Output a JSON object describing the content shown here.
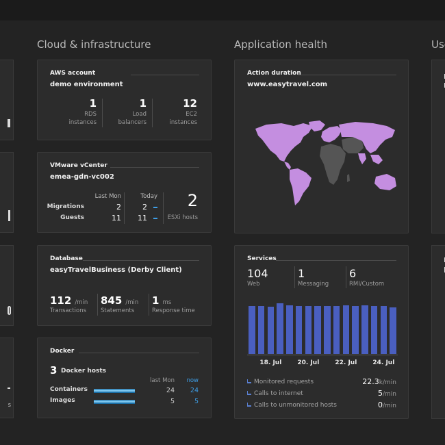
{
  "columns": {
    "cloud": "Cloud & infrastructure",
    "app": "Application health",
    "users_partial": "Use"
  },
  "aws": {
    "head": "AWS account",
    "sub": "demo environment",
    "metrics": [
      {
        "value": "1",
        "label_line1": "RDS",
        "label_line2": "instances"
      },
      {
        "value": "1",
        "label_line1": "Load",
        "label_line2": "balancers"
      },
      {
        "value": "12",
        "label_line1": "EC2",
        "label_line2": "instances"
      }
    ]
  },
  "vmware": {
    "head": "VMware vCenter",
    "sub": "emea-gdn-vc002",
    "col_last_mon": "Last Mon",
    "col_today": "Today",
    "rows": [
      {
        "label": "Migrations",
        "last_mon": "2",
        "today": "2"
      },
      {
        "label": "Guests",
        "last_mon": "11",
        "today": "11"
      }
    ],
    "hosts_value": "2",
    "hosts_label": "ESXi hosts"
  },
  "database": {
    "head": "Database",
    "sub": "easyTravelBusiness (Derby Client)",
    "metrics": [
      {
        "value": "112",
        "unit": "/min",
        "label": "Transactions"
      },
      {
        "value": "845",
        "unit": "/min",
        "label": "Statements"
      },
      {
        "value": "1",
        "unit": "ms",
        "label": "Response time"
      }
    ]
  },
  "docker": {
    "head": "Docker",
    "hosts_value": "3",
    "hosts_label": "Docker hosts",
    "col_last_mon": "last Mon",
    "col_now": "now",
    "rows": [
      {
        "label": "Containers",
        "last_mon": "24",
        "now": "24",
        "fill": 1.0
      },
      {
        "label": "Images",
        "last_mon": "5",
        "now": "5",
        "fill": 1.0
      }
    ]
  },
  "action": {
    "head": "Action duration",
    "sub": "www.easytravel.com",
    "map_color": "#c48ee0",
    "map_dark": "#555555"
  },
  "services": {
    "head": "Services",
    "stats": [
      {
        "value": "104",
        "label": "Web"
      },
      {
        "value": "1",
        "label": "Messaging"
      },
      {
        "value": "6",
        "label": "RMI/Custom"
      }
    ],
    "chart_data": {
      "type": "bar",
      "values": [
        0.92,
        0.92,
        0.91,
        0.97,
        0.94,
        0.92,
        0.92,
        0.92,
        0.92,
        0.92,
        0.93,
        0.92,
        0.93,
        0.92,
        0.92,
        0.9
      ],
      "xticks": [
        "18. Jul",
        "20. Jul",
        "22. Jul",
        "24. Jul"
      ],
      "bar_color": "#4a5fc0"
    },
    "legend": [
      {
        "label": "Monitored requests",
        "value": "22.3",
        "unit": "k/min"
      },
      {
        "label": "Calls to internet",
        "value": "5",
        "unit": "/min"
      },
      {
        "label": "Calls to unmonitored hosts",
        "value": "0",
        "unit": "/min"
      }
    ]
  },
  "edge_left": {
    "tile4_text": "s"
  }
}
